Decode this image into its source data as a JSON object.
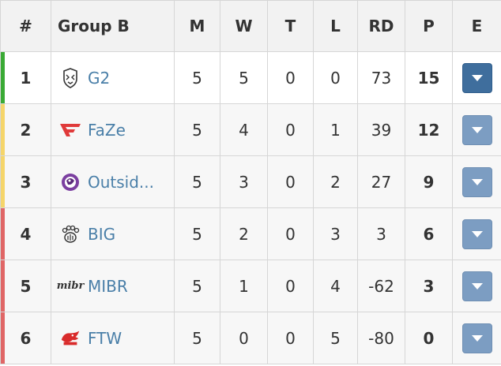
{
  "headers": {
    "rank": "#",
    "group": "Group B",
    "matches": "M",
    "wins": "W",
    "ties": "T",
    "losses": "L",
    "round_diff": "RD",
    "points": "P",
    "expand": "E"
  },
  "colors": {
    "qualified": "#3aaa35",
    "playoff": "#f5d56a",
    "eliminated": "#e06666",
    "link": "#4a7fa8",
    "button": "#7c9dc2",
    "button_active": "#3f6e9d"
  },
  "rows": [
    {
      "rank": "1",
      "team": "G2",
      "logo": "g2-logo",
      "m": "5",
      "w": "5",
      "t": "0",
      "l": "0",
      "rd": "73",
      "p": "15"
    },
    {
      "rank": "2",
      "team": "FaZe",
      "logo": "faze-logo",
      "m": "5",
      "w": "4",
      "t": "0",
      "l": "1",
      "rd": "39",
      "p": "12"
    },
    {
      "rank": "3",
      "team": "Outsid...",
      "logo": "outsiders-logo",
      "m": "5",
      "w": "3",
      "t": "0",
      "l": "2",
      "rd": "27",
      "p": "9"
    },
    {
      "rank": "4",
      "team": "BIG",
      "logo": "big-logo",
      "m": "5",
      "w": "2",
      "t": "0",
      "l": "3",
      "rd": "3",
      "p": "6"
    },
    {
      "rank": "5",
      "team": "MIBR",
      "logo": "mibr-logo",
      "logo_text": "mibr",
      "m": "5",
      "w": "1",
      "t": "0",
      "l": "4",
      "rd": "-62",
      "p": "3"
    },
    {
      "rank": "6",
      "team": "FTW",
      "logo": "ftw-logo",
      "m": "5",
      "w": "0",
      "t": "0",
      "l": "5",
      "rd": "-80",
      "p": "0"
    }
  ]
}
